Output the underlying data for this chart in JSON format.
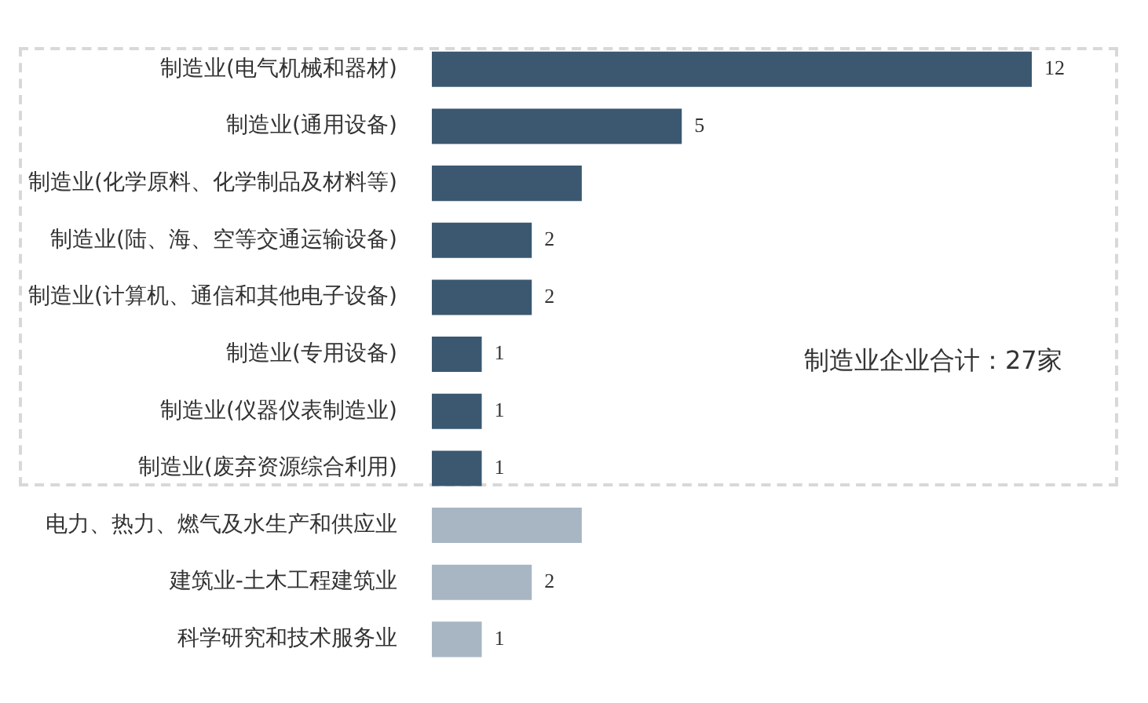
{
  "chart_data": {
    "type": "bar",
    "orientation": "horizontal",
    "categories": [
      "制造业(电气机械和器材)",
      "制造业(通用设备)",
      "制造业(化学原料、化学制品及材料等)",
      "制造业(陆、海、空等交通运输设备)",
      "制造业(计算机、通信和其他电子设备)",
      "制造业(专用设备)",
      "制造业(仪器仪表制造业)",
      "制造业(废弃资源综合利用)",
      "电力、热力、燃气及水生产和供应业",
      "建筑业-土木工程建筑业",
      "科学研究和技术服务业"
    ],
    "values": [
      12,
      5,
      3,
      2,
      2,
      1,
      1,
      1,
      3,
      2,
      1
    ],
    "value_labels": [
      "12",
      "5",
      null,
      "2",
      "2",
      "1",
      "1",
      "1",
      null,
      "2",
      "1"
    ],
    "colors": [
      "#3b5870",
      "#3b5870",
      "#3b5870",
      "#3b5870",
      "#3b5870",
      "#3b5870",
      "#3b5870",
      "#3b5870",
      "#a8b6c3",
      "#a8b6c3",
      "#a8b6c3"
    ],
    "annotations": [
      "制造业企业合计：27家"
    ],
    "legend": false
  }
}
